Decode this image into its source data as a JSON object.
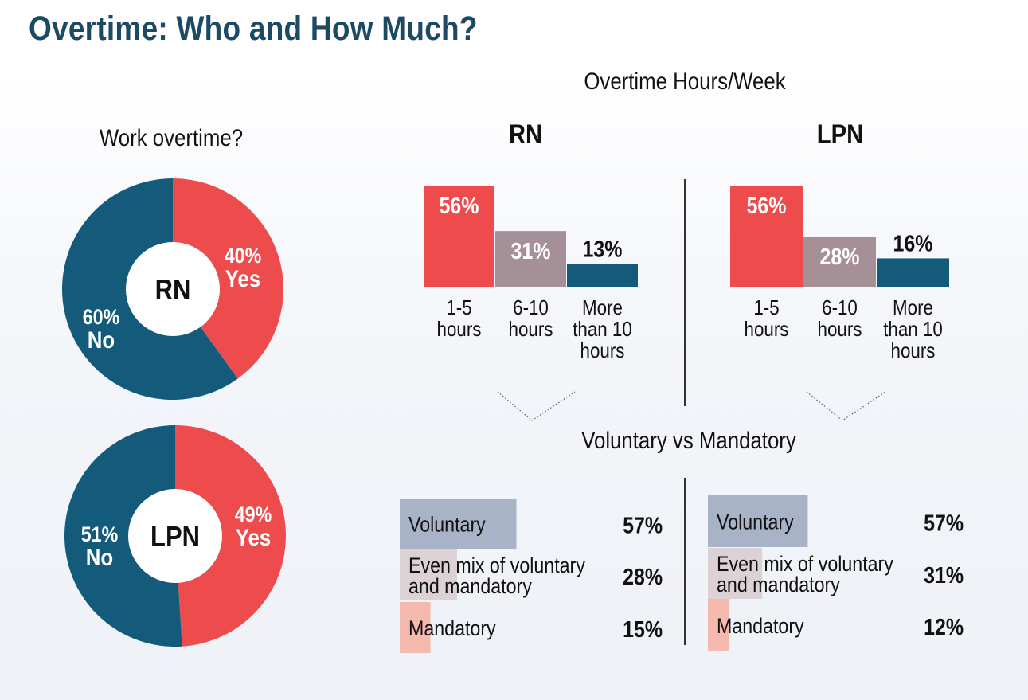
{
  "title": "Overtime: Who and How Much?",
  "colors": {
    "yes": "#ee4b4d",
    "no": "#135a7b",
    "mid_bar": "#a69098",
    "voluntary": "#a8b3c7",
    "mix": "#dcd2d6",
    "mandatory": "#f5b9ae"
  },
  "work_overtime": {
    "title": "Work overtime?"
  },
  "hours_section": {
    "title": "Overtime Hours/Week"
  },
  "mode_section": {
    "title": "Voluntary vs Mandatory"
  },
  "chart_data": [
    {
      "type": "pie",
      "title": "RN",
      "slices": [
        {
          "label": "Yes",
          "value": 40,
          "display": "40%"
        },
        {
          "label": "No",
          "value": 60,
          "display": "60%"
        }
      ]
    },
    {
      "type": "pie",
      "title": "LPN",
      "slices": [
        {
          "label": "Yes",
          "value": 49,
          "display": "49%"
        },
        {
          "label": "No",
          "value": 51,
          "display": "51%"
        }
      ]
    },
    {
      "type": "bar",
      "title": "RN",
      "categories": [
        "1-5 hours",
        "6-10 hours",
        "More than 10 hours"
      ],
      "category_lines": [
        [
          "1-5",
          "hours"
        ],
        [
          "6-10",
          "hours"
        ],
        [
          "More",
          "than 10",
          "hours"
        ]
      ],
      "values": [
        56,
        31,
        13
      ],
      "labels": [
        "56%",
        "31%",
        "13%"
      ],
      "ylim": [
        0,
        56
      ]
    },
    {
      "type": "bar",
      "title": "LPN",
      "categories": [
        "1-5 hours",
        "6-10 hours",
        "More than 10 hours"
      ],
      "category_lines": [
        [
          "1-5",
          "hours"
        ],
        [
          "6-10",
          "hours"
        ],
        [
          "More",
          "than 10",
          "hours"
        ]
      ],
      "values": [
        56,
        28,
        16
      ],
      "labels": [
        "56%",
        "28%",
        "16%"
      ],
      "ylim": [
        0,
        56
      ]
    },
    {
      "type": "bar",
      "orientation": "horizontal",
      "title": "RN Voluntary vs Mandatory",
      "categories": [
        "Voluntary",
        "Even mix of voluntary and mandatory",
        "Mandatory"
      ],
      "category_lines": [
        [
          "Voluntary"
        ],
        [
          "Even mix of voluntary",
          "and mandatory"
        ],
        [
          "Mandatory"
        ]
      ],
      "values": [
        57,
        28,
        15
      ],
      "labels": [
        "57%",
        "28%",
        "15%"
      ]
    },
    {
      "type": "bar",
      "orientation": "horizontal",
      "title": "LPN Voluntary vs Mandatory",
      "categories": [
        "Voluntary",
        "Even mix of voluntary and mandatory",
        "Mandatory"
      ],
      "category_lines": [
        [
          "Voluntary"
        ],
        [
          "Even mix of voluntary",
          "and mandatory"
        ],
        [
          "Mandatory"
        ]
      ],
      "values": [
        57,
        31,
        12
      ],
      "labels": [
        "57%",
        "31%",
        "12%"
      ]
    }
  ]
}
